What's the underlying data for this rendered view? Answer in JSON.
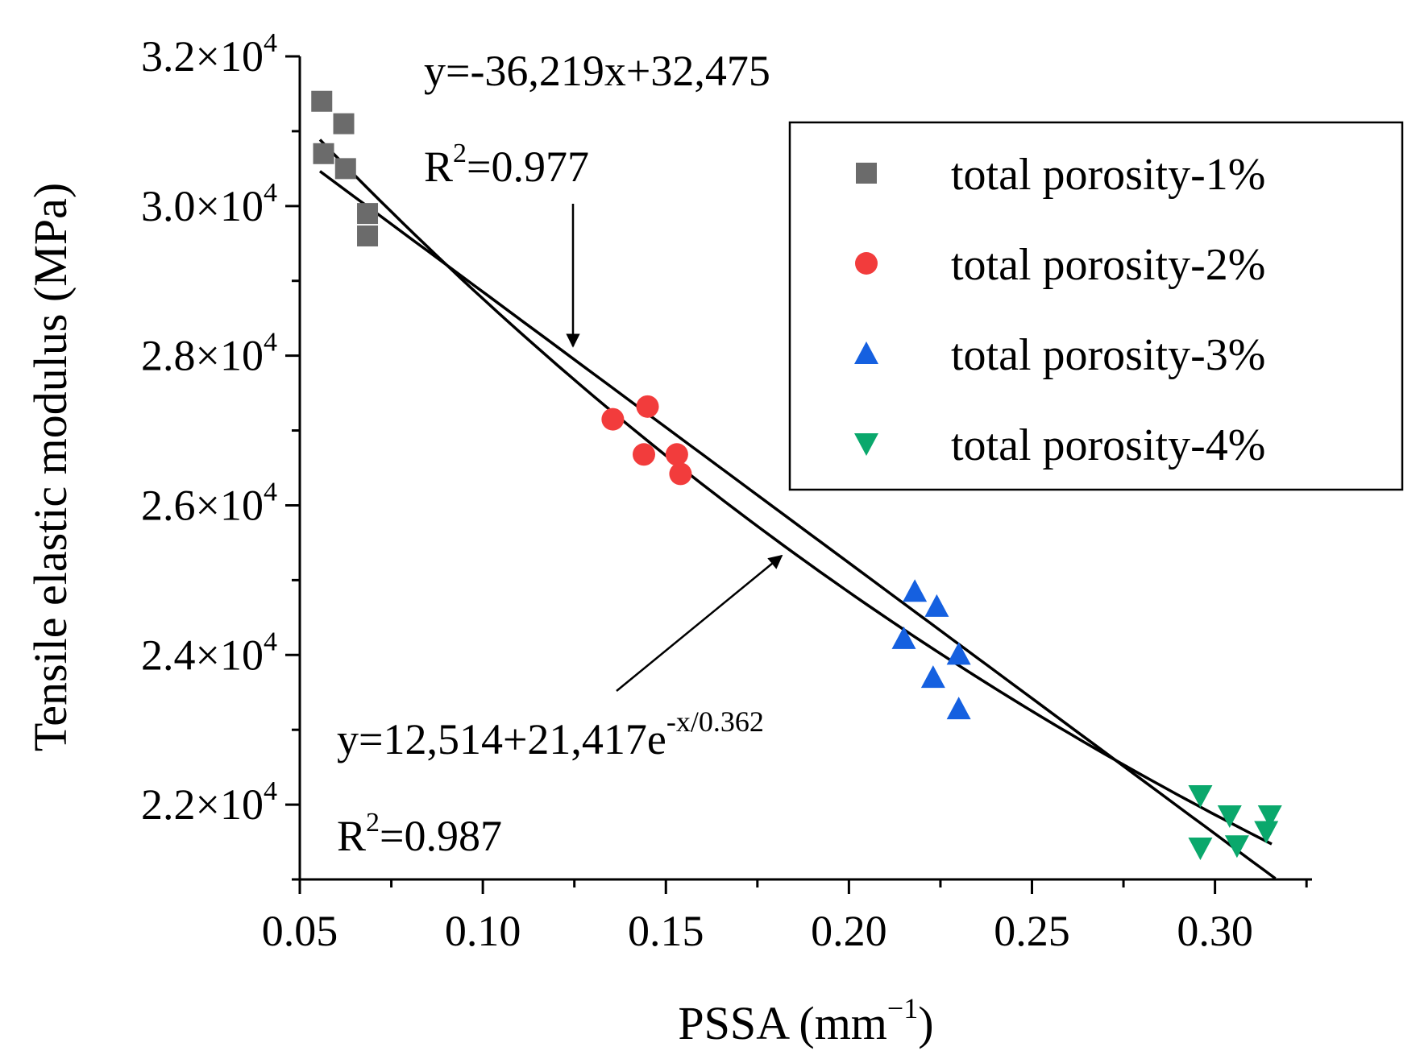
{
  "chart_data": {
    "type": "scatter",
    "xlabel": "PSSA (mm",
    "xlabel_sup": "−1",
    "xlabel_close": ")",
    "ylabel": "Tensile elastic modulus (MPa)",
    "xlim": [
      0.05,
      0.3265
    ],
    "ylim": [
      21000,
      32000
    ],
    "x_ticks": [
      {
        "value": 0.05,
        "label": "0.05"
      },
      {
        "value": 0.1,
        "label": "0.10"
      },
      {
        "value": 0.15,
        "label": "0.15"
      },
      {
        "value": 0.2,
        "label": "0.20"
      },
      {
        "value": 0.25,
        "label": "0.25"
      },
      {
        "value": 0.3,
        "label": "0.30"
      }
    ],
    "x_minor_ticks": [
      0.075,
      0.125,
      0.175,
      0.225,
      0.275,
      0.325
    ],
    "y_ticks": [
      {
        "value": 22000,
        "mantissa": "2.2",
        "exp": "4"
      },
      {
        "value": 24000,
        "mantissa": "2.4",
        "exp": "4"
      },
      {
        "value": 26000,
        "mantissa": "2.6",
        "exp": "4"
      },
      {
        "value": 28000,
        "mantissa": "2.8",
        "exp": "4"
      },
      {
        "value": 30000,
        "mantissa": "3.0",
        "exp": "4"
      },
      {
        "value": 32000,
        "mantissa": "3.2",
        "exp": "4"
      }
    ],
    "y_minor_ticks": [
      21000,
      23000,
      25000,
      27000,
      29000,
      31000
    ],
    "series": [
      {
        "name": "total porosity-1%",
        "marker": "square",
        "color": "#6b6b6b",
        "points": [
          [
            0.056,
            31400
          ],
          [
            0.062,
            31100
          ],
          [
            0.0565,
            30700
          ],
          [
            0.0625,
            30500
          ],
          [
            0.0685,
            29900
          ],
          [
            0.0685,
            29600
          ]
        ]
      },
      {
        "name": "total porosity-2%",
        "marker": "circle",
        "color": "#f23c3c",
        "points": [
          [
            0.1355,
            27150
          ],
          [
            0.145,
            27320
          ],
          [
            0.144,
            26680
          ],
          [
            0.153,
            26680
          ],
          [
            0.154,
            26420
          ]
        ]
      },
      {
        "name": "total porosity-3%",
        "marker": "triangle-up",
        "color": "#1560e0",
        "points": [
          [
            0.218,
            24850
          ],
          [
            0.224,
            24650
          ],
          [
            0.215,
            24220
          ],
          [
            0.23,
            24010
          ],
          [
            0.223,
            23700
          ],
          [
            0.23,
            23280
          ]
        ]
      },
      {
        "name": "total porosity-4%",
        "marker": "triangle-down",
        "color": "#0aa86c",
        "points": [
          [
            0.296,
            22120
          ],
          [
            0.304,
            21850
          ],
          [
            0.315,
            21850
          ],
          [
            0.296,
            21420
          ],
          [
            0.306,
            21450
          ],
          [
            0.314,
            21640
          ]
        ]
      }
    ],
    "fits": [
      {
        "name": "linear fit",
        "kind": "linear",
        "slope": -36219,
        "intercept": 32475,
        "x_range": [
          0.0555,
          0.3165
        ]
      },
      {
        "name": "exponential fit",
        "kind": "exp",
        "a": 12514,
        "b": 21417,
        "t": 0.362,
        "x_range": [
          0.0555,
          0.3155
        ]
      }
    ],
    "annotations": {
      "linear_eq": "y=-36,219x+32,475",
      "linear_r2_prefix": "R",
      "linear_r2_sup": "2",
      "linear_r2_value": "=0.977",
      "exp_eq": "y=12,514+21,417e",
      "exp_eq_sup": "-x/0.362",
      "exp_r2_prefix": "R",
      "exp_r2_sup": "2",
      "exp_r2_value": "=0.987"
    },
    "legend_position": "top-right"
  },
  "colors": {
    "axis": "#000000",
    "fit_line": "#000000"
  }
}
